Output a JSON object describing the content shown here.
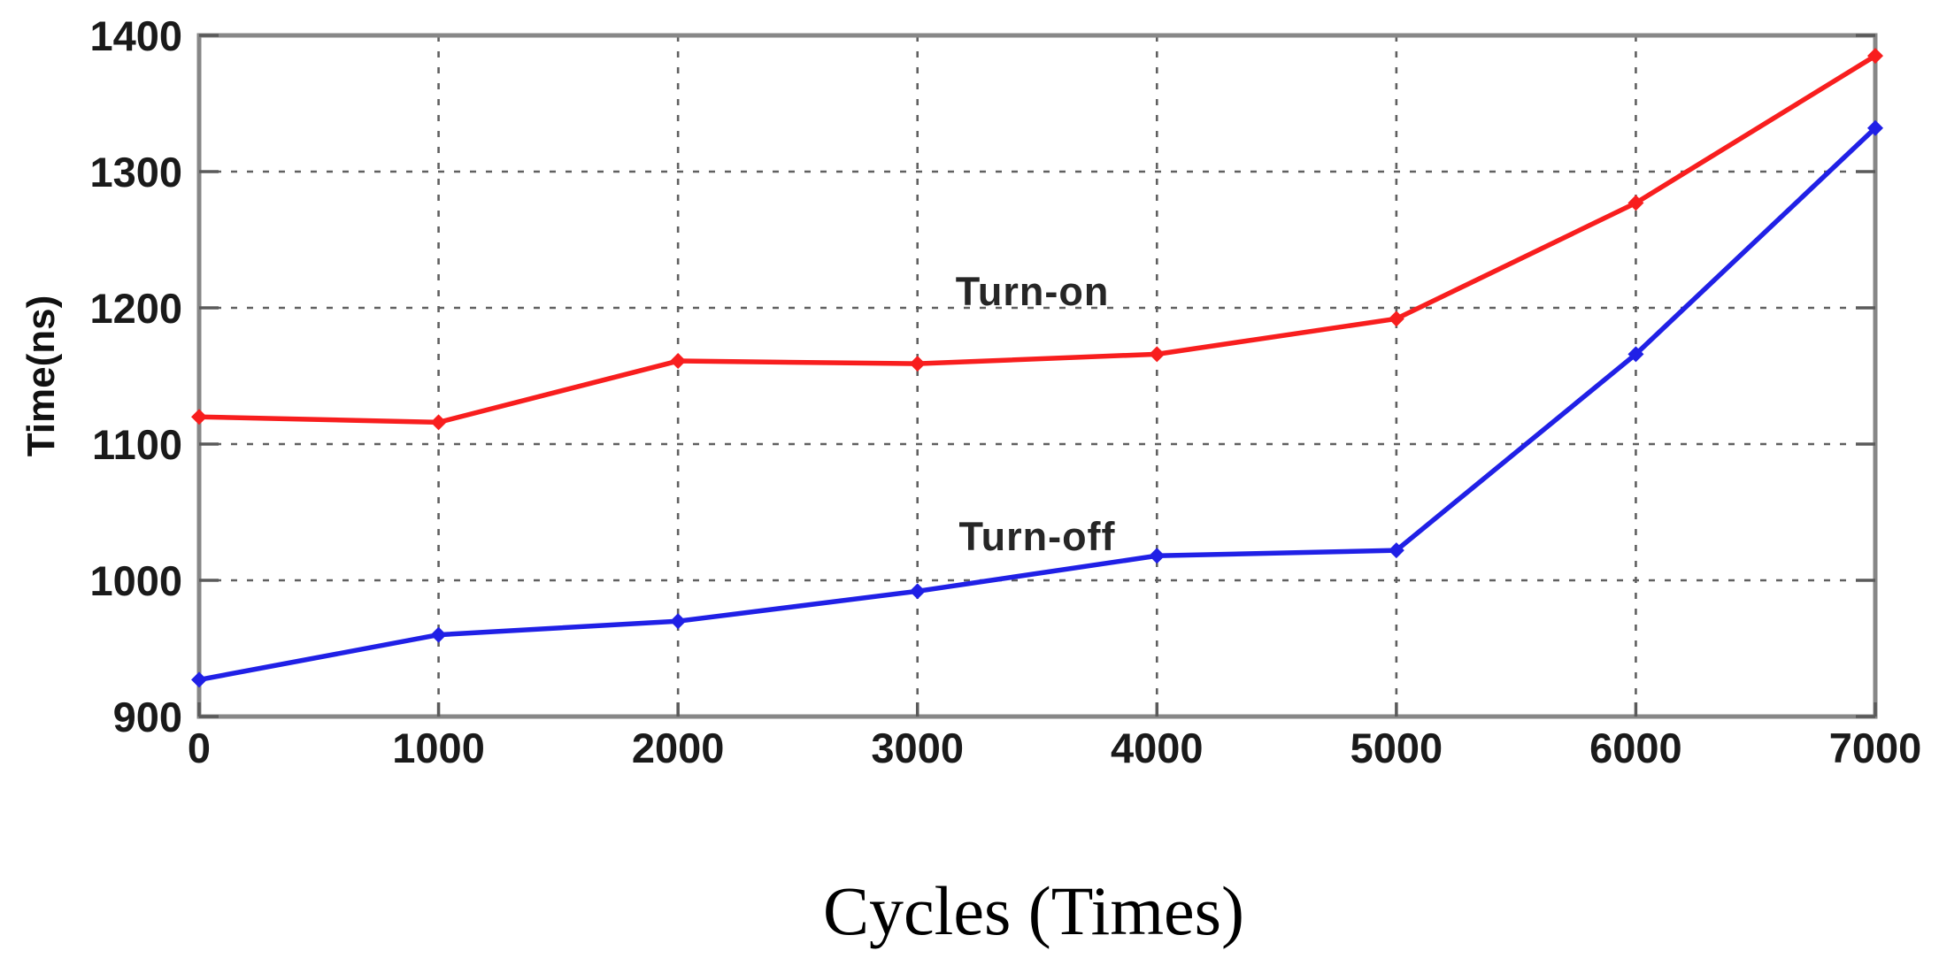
{
  "chart_data": {
    "type": "line",
    "title": "",
    "xlabel": "Cycles (Times)",
    "ylabel": "Time(ns)",
    "x": [
      0,
      1000,
      2000,
      3000,
      4000,
      5000,
      6000,
      7000
    ],
    "series": [
      {
        "name": "Turn-on",
        "color": "#f81e1e",
        "values": [
          1120,
          1116,
          1161,
          1159,
          1166,
          1192,
          1277,
          1385
        ]
      },
      {
        "name": "Turn-off",
        "color": "#2020e6",
        "values": [
          927,
          960,
          970,
          992,
          1018,
          1022,
          1166,
          1332
        ]
      }
    ],
    "xlim": [
      0,
      7000
    ],
    "ylim": [
      900,
      1400
    ],
    "xticks": [
      0,
      1000,
      2000,
      3000,
      4000,
      5000,
      6000,
      7000
    ],
    "yticks": [
      900,
      1000,
      1100,
      1200,
      1300,
      1400
    ],
    "grid": true,
    "grid_style": "dashed",
    "legend_position": "inline-annotations",
    "annotations": [
      {
        "text": "Turn-on",
        "x": 3480,
        "y": 1212
      },
      {
        "text": "Turn-off",
        "x": 3500,
        "y": 1032
      }
    ],
    "frame_color": "#878787",
    "grid_color": "#606060",
    "tick_color": "#5a5a5a",
    "text_color": "#1a1a1a",
    "background_color": "#ffffff"
  }
}
